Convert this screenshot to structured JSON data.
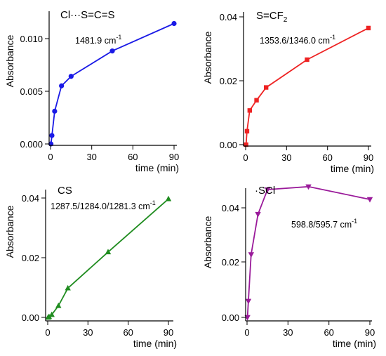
{
  "chart_data": [
    {
      "type": "line",
      "title": "Cl···S=C=S",
      "annotation": "1481.9 cm",
      "annotation_sup": "-1",
      "xlabel": "time (min)",
      "ylabel": "Absorbance",
      "xlim": [
        0,
        90
      ],
      "ylim": [
        0,
        0.0115
      ],
      "x_ticks": [
        "0",
        "30",
        "60",
        "90"
      ],
      "y_ticks": [
        "0.000",
        "0.005",
        "0.010"
      ],
      "marker": "circle",
      "color": "#1a1ae6",
      "series": [
        {
          "x": [
            0.3,
            1,
            3,
            8,
            15,
            45,
            90
          ],
          "y": [
            0.0,
            0.0008,
            0.0031,
            0.0055,
            0.0064,
            0.0088,
            0.0114
          ]
        }
      ]
    },
    {
      "type": "line",
      "title": "S=CF",
      "title_sub": "2",
      "annotation": "1353.6/1346.0 cm",
      "annotation_sup": "-1",
      "xlabel": "time (min)",
      "ylabel": "Absorbance",
      "xlim": [
        0,
        90
      ],
      "ylim": [
        0,
        0.04
      ],
      "x_ticks": [
        "0",
        "30",
        "60",
        "90"
      ],
      "y_ticks": [
        "0.00",
        "0.02",
        "0.04"
      ],
      "marker": "square",
      "color": "#ee2222",
      "series": [
        {
          "x": [
            0.3,
            1,
            3,
            8,
            15,
            45,
            90
          ],
          "y": [
            0.0,
            0.0042,
            0.0107,
            0.0139,
            0.0179,
            0.0266,
            0.0365
          ]
        }
      ]
    },
    {
      "type": "line",
      "title": "CS",
      "annotation": "1287.5/1284.0/1281.3 cm",
      "annotation_sup": "-1",
      "xlabel": "time (min)",
      "ylabel": "Absorbance",
      "xlim": [
        0,
        90
      ],
      "ylim": [
        0,
        0.04
      ],
      "x_ticks": [
        "0",
        "30",
        "60",
        "90"
      ],
      "y_ticks": [
        "0.00",
        "0.02",
        "0.04"
      ],
      "marker": "triangle-up",
      "color": "#1f8c1f",
      "series": [
        {
          "x": [
            0.3,
            1,
            3,
            8,
            15,
            45,
            90
          ],
          "y": [
            0.0,
            0.0002,
            0.0009,
            0.0039,
            0.0098,
            0.0219,
            0.0397
          ]
        }
      ]
    },
    {
      "type": "line",
      "title": "·SCl",
      "annotation": "598.8/595.7 cm",
      "annotation_sup": "-1",
      "xlabel": "time (min)",
      "ylabel": "Absorbance",
      "xlim": [
        0,
        90
      ],
      "ylim": [
        0,
        0.045
      ],
      "x_ticks": [
        "0",
        "30",
        "60",
        "90"
      ],
      "y_ticks": [
        "0.00",
        "0.02",
        "0.04"
      ],
      "marker": "triangle-down",
      "color": "#9a1a9a",
      "series": [
        {
          "x": [
            0.3,
            1,
            3,
            8,
            15,
            45,
            90
          ],
          "y": [
            0.0,
            0.0055,
            0.0212,
            0.0348,
            0.0431,
            0.0441,
            0.0398
          ]
        }
      ]
    }
  ]
}
